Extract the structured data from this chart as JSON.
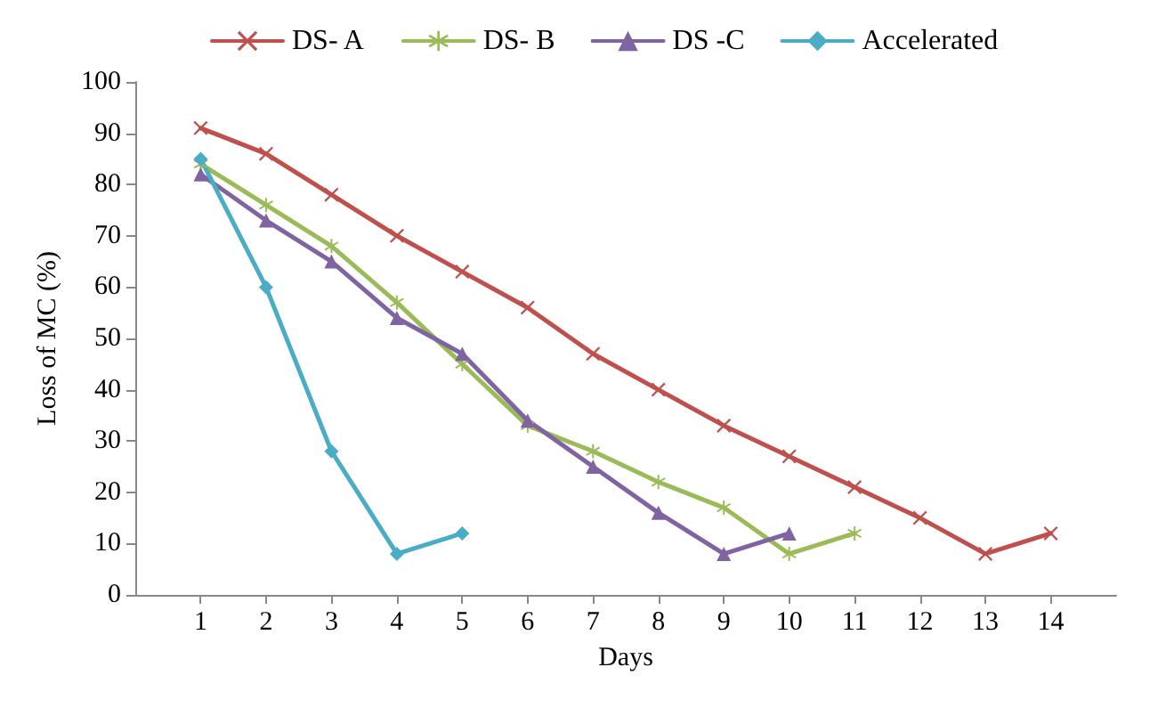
{
  "chart_data": {
    "type": "line",
    "xlabel": "Days",
    "ylabel": "Loss of MC (%)",
    "x": [
      1,
      2,
      3,
      4,
      5,
      6,
      7,
      8,
      9,
      10,
      11,
      12,
      13,
      14
    ],
    "xlim": [
      0,
      15
    ],
    "xticks": [
      1,
      2,
      3,
      4,
      5,
      6,
      7,
      8,
      9,
      10,
      11,
      12,
      13,
      14
    ],
    "ylim": [
      0,
      100
    ],
    "yticks": [
      0,
      10,
      20,
      30,
      40,
      50,
      60,
      70,
      80,
      90,
      100
    ],
    "grid": false,
    "legend": "top",
    "line_style": "solid",
    "series": [
      {
        "name": "DS- A",
        "color": "#c0504d",
        "marker": "cross",
        "values": [
          91,
          86,
          78,
          70,
          63,
          56,
          47,
          40,
          33,
          27,
          21,
          15,
          8,
          12
        ]
      },
      {
        "name": "DS- B",
        "color": "#9bbb59",
        "marker": "star",
        "x": [
          1,
          2,
          3,
          4,
          5,
          6,
          7,
          8,
          9,
          10,
          11
        ],
        "values": [
          84,
          76,
          68,
          57,
          45,
          33,
          28,
          22,
          17,
          8,
          12
        ]
      },
      {
        "name": "DS -C",
        "color": "#8064a2",
        "marker": "triangle",
        "x": [
          1,
          2,
          3,
          4,
          5,
          6,
          7,
          8,
          9,
          10
        ],
        "values": [
          82,
          73,
          65,
          54,
          47,
          34,
          25,
          16,
          8,
          12
        ]
      },
      {
        "name": "Accelerated",
        "color": "#4bacc6",
        "marker": "diamond",
        "x": [
          1,
          2,
          3,
          4,
          5
        ],
        "values": [
          85,
          60,
          28,
          8,
          12
        ]
      }
    ]
  }
}
